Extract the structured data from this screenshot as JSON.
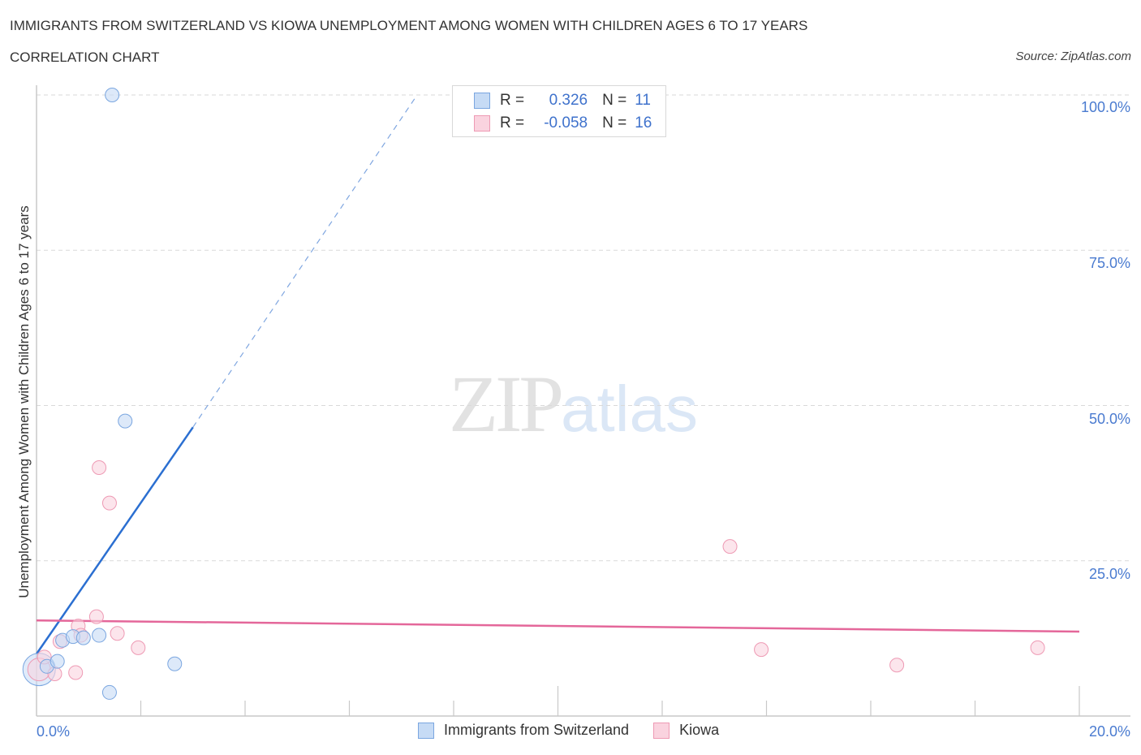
{
  "header": {
    "title": "IMMIGRANTS FROM SWITZERLAND VS KIOWA UNEMPLOYMENT AMONG WOMEN WITH CHILDREN AGES 6 TO 17 YEARS",
    "subtitle": "CORRELATION CHART",
    "source": "Source: ZipAtlas.com"
  },
  "watermark": {
    "zip": "ZIP",
    "atlas": "atlas"
  },
  "legend_stats": {
    "series": [
      {
        "r_label": "R =",
        "r_value": "0.326",
        "n_label": "N =",
        "n_value": "11",
        "color": "#a9c8f0"
      },
      {
        "r_label": "R =",
        "r_value": "-0.058",
        "n_label": "N =",
        "n_value": "16",
        "color": "#f5b8cb"
      }
    ]
  },
  "axes": {
    "y_label": "Unemployment Among Women with Children Ages 6 to 17 years",
    "y_ticks": [
      "100.0%",
      "75.0%",
      "50.0%",
      "25.0%"
    ],
    "x_ticks": [
      "0.0%",
      "20.0%"
    ]
  },
  "bottom_legend": [
    {
      "label": "Immigrants from Switzerland",
      "color": "#a9c8f0"
    },
    {
      "label": "Kiowa",
      "color": "#f5b8cb"
    }
  ],
  "colors": {
    "blue_fill": "#c6dbf5",
    "blue_stroke": "#7aa6e0",
    "blue_line": "#2b6fd1",
    "pink_fill": "#fad3df",
    "pink_stroke": "#ee9ab4",
    "pink_line": "#e4679a",
    "tick_label": "#4a7bd0"
  },
  "chart_data": {
    "type": "scatter",
    "title": "IMMIGRANTS FROM SWITZERLAND VS KIOWA UNEMPLOYMENT AMONG WOMEN WITH CHILDREN AGES 6 TO 17 YEARS",
    "subtitle": "CORRELATION CHART",
    "xlabel": "",
    "ylabel": "Unemployment Among Women with Children Ages 6 to 17 years",
    "xlim": [
      0,
      20
    ],
    "ylim": [
      0,
      100
    ],
    "x_tick_labels": [
      "0.0%",
      "20.0%"
    ],
    "y_tick_labels": [
      "25.0%",
      "50.0%",
      "75.0%",
      "100.0%"
    ],
    "grid": "horizontal dashed",
    "legend_position": "top-center (stats) and bottom-center (series)",
    "series": [
      {
        "name": "Immigrants from Switzerland",
        "R": 0.326,
        "N": 11,
        "points": [
          {
            "x": 0.05,
            "y": 7.5
          },
          {
            "x": 0.2,
            "y": 8.0
          },
          {
            "x": 0.4,
            "y": 8.8
          },
          {
            "x": 0.5,
            "y": 12.2
          },
          {
            "x": 0.7,
            "y": 12.8
          },
          {
            "x": 0.9,
            "y": 12.6
          },
          {
            "x": 1.2,
            "y": 13.0
          },
          {
            "x": 1.45,
            "y": 100.0
          },
          {
            "x": 1.7,
            "y": 47.5
          },
          {
            "x": 1.4,
            "y": 3.8
          },
          {
            "x": 2.65,
            "y": 8.4
          }
        ],
        "trendline": {
          "x0": 0.0,
          "y0": 10.0,
          "x1": 3.0,
          "y1": 46.5,
          "extended_to": {
            "x": 7.3,
            "y": 100.0
          }
        }
      },
      {
        "name": "Kiowa",
        "R": -0.058,
        "N": 16,
        "points": [
          {
            "x": 0.05,
            "y": 7.5
          },
          {
            "x": 0.15,
            "y": 9.5
          },
          {
            "x": 0.35,
            "y": 6.8
          },
          {
            "x": 0.45,
            "y": 12.0
          },
          {
            "x": 0.75,
            "y": 7.0
          },
          {
            "x": 0.8,
            "y": 14.5
          },
          {
            "x": 0.85,
            "y": 13.0
          },
          {
            "x": 1.15,
            "y": 16.0
          },
          {
            "x": 1.2,
            "y": 40.0
          },
          {
            "x": 1.4,
            "y": 34.3
          },
          {
            "x": 1.55,
            "y": 13.3
          },
          {
            "x": 1.95,
            "y": 11.0
          },
          {
            "x": 13.3,
            "y": 27.3
          },
          {
            "x": 13.9,
            "y": 10.7
          },
          {
            "x": 16.5,
            "y": 8.2
          },
          {
            "x": 19.2,
            "y": 11.0
          }
        ],
        "trendline": {
          "x0": 0.0,
          "y0": 15.4,
          "x1": 20.0,
          "y1": 13.6
        }
      }
    ]
  }
}
